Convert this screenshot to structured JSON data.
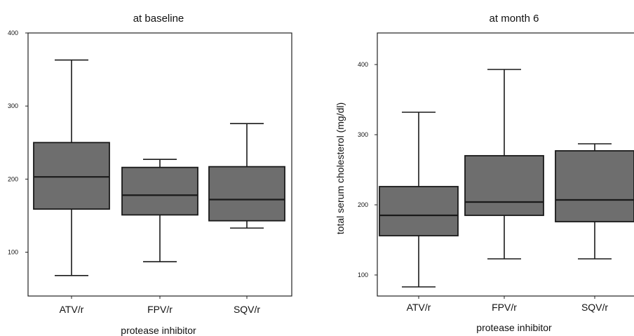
{
  "colors": {
    "box_fill": "#6e6e6e",
    "line": "#1a1a1a",
    "frame": "#222222"
  },
  "chart_data": [
    {
      "type": "box",
      "title": "at baseline",
      "xlabel": "protease inhibitor",
      "ylabel": "",
      "ylim": [
        40,
        400
      ],
      "yticks": [
        100,
        200,
        300,
        400
      ],
      "ytick_labels": [
        "100",
        "200",
        "300",
        "400"
      ],
      "categories": [
        "ATV/r",
        "FPV/r",
        "SQV/r"
      ],
      "boxes": [
        {
          "category": "ATV/r",
          "min": 68,
          "q1": 159,
          "median": 203,
          "q3": 250,
          "max": 363
        },
        {
          "category": "FPV/r",
          "min": 87,
          "q1": 151,
          "median": 178,
          "q3": 216,
          "max": 227
        },
        {
          "category": "SQV/r",
          "min": 133,
          "q1": 143,
          "median": 172,
          "q3": 217,
          "max": 276
        }
      ]
    },
    {
      "type": "box",
      "title": "at month 6",
      "xlabel": "protease inhibitor",
      "ylabel": "total serum cholesterol (mg/dl)",
      "ylim": [
        70,
        445
      ],
      "yticks": [
        100,
        200,
        300,
        400
      ],
      "ytick_labels": [
        "100",
        "200",
        "300",
        "400"
      ],
      "categories": [
        "ATV/r",
        "FPV/r",
        "SQV/r"
      ],
      "boxes": [
        {
          "category": "ATV/r",
          "min": 83,
          "q1": 156,
          "median": 185,
          "q3": 226,
          "max": 332
        },
        {
          "category": "FPV/r",
          "min": 123,
          "q1": 185,
          "median": 204,
          "q3": 270,
          "max": 393
        },
        {
          "category": "SQV/r",
          "min": 123,
          "q1": 176,
          "median": 207,
          "q3": 277,
          "max": 287
        }
      ]
    }
  ]
}
